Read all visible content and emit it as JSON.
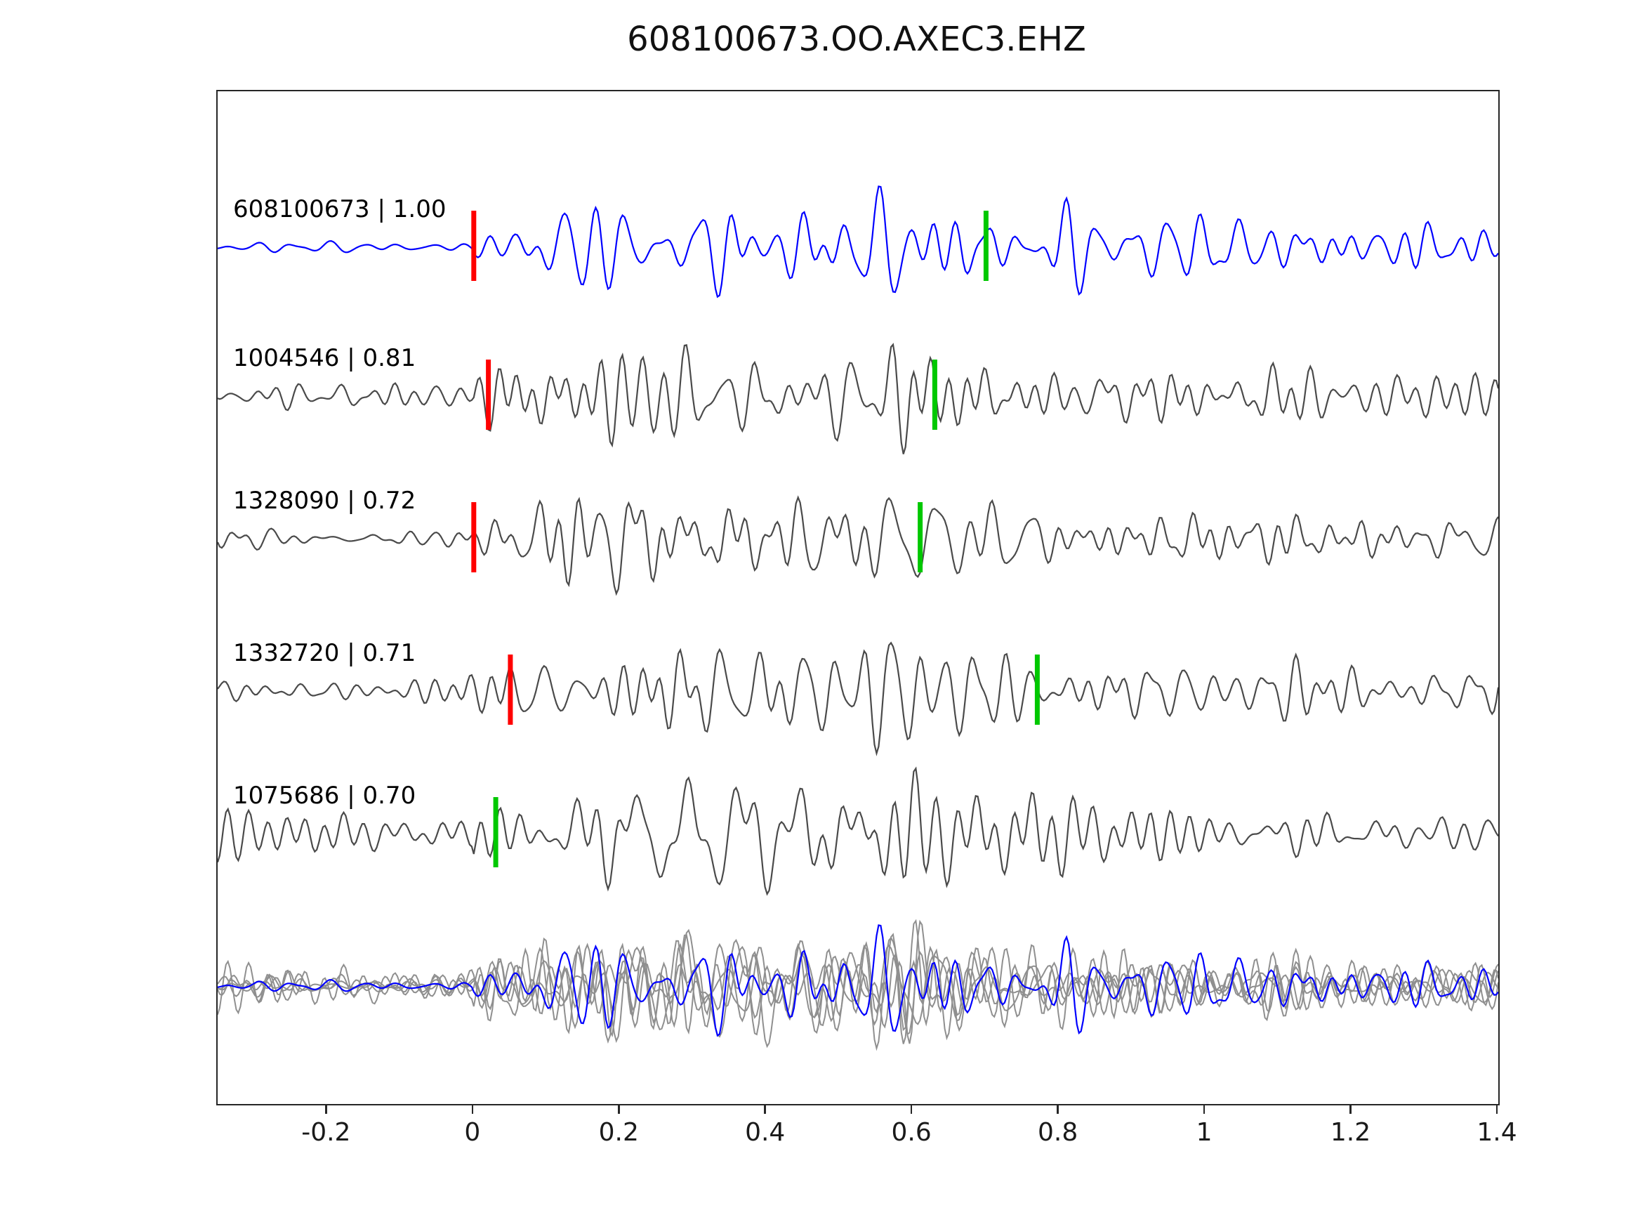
{
  "chart_data": {
    "type": "line",
    "subtype": "seismic-waveform-stack",
    "title": "608100673.OO.AXEC3.EHZ",
    "xlabel": "",
    "ylabel": "",
    "xlim": [
      -0.35,
      1.4
    ],
    "x_ticks": [
      -0.2,
      0,
      0.2,
      0.4,
      0.6,
      0.8,
      1,
      1.2,
      1.4
    ],
    "x_tick_labels": [
      "-0.2",
      "0",
      "0.2",
      "0.4",
      "0.6",
      "0.8",
      "1",
      "1.2",
      "1.4"
    ],
    "grid": false,
    "legend": "none",
    "colors": {
      "template": "#0000ff",
      "match": "#4a4a4a",
      "overlay_gray": "#8f8f8f",
      "pick_red": "#ff0000",
      "pick_green": "#00c800",
      "axis": "#262626"
    },
    "traces": [
      {
        "id": "608100673",
        "correlation": 1.0,
        "label": "608100673 | 1.00",
        "color_key": "template",
        "red_pick_x": 0.0,
        "green_pick_x": 0.7,
        "seed": 11,
        "pre_amp": 0.18
      },
      {
        "id": "1004546",
        "correlation": 0.81,
        "label": "1004546 | 0.81",
        "color_key": "match",
        "red_pick_x": 0.02,
        "green_pick_x": 0.63,
        "seed": 23,
        "pre_amp": 0.33
      },
      {
        "id": "1328090",
        "correlation": 0.72,
        "label": "1328090 | 0.72",
        "color_key": "match",
        "red_pick_x": 0.0,
        "green_pick_x": 0.61,
        "seed": 37,
        "pre_amp": 0.33
      },
      {
        "id": "1332720",
        "correlation": 0.71,
        "label": "1332720 | 0.71",
        "color_key": "match",
        "red_pick_x": 0.05,
        "green_pick_x": 0.77,
        "seed": 41,
        "pre_amp": 0.38
      },
      {
        "id": "1075686",
        "correlation": 0.7,
        "label": "1075686 | 0.70",
        "color_key": "match",
        "red_pick_x": null,
        "green_pick_x": 0.03,
        "seed": 53,
        "pre_amp": 0.6
      }
    ],
    "overlay": {
      "description": "all matched detections (gray) overlaid with template trace (blue)",
      "gray_series": [
        {
          "seed": 23,
          "pre_amp": 0.33
        },
        {
          "seed": 37,
          "pre_amp": 0.33
        },
        {
          "seed": 41,
          "pre_amp": 0.38
        },
        {
          "seed": 53,
          "pre_amp": 0.6
        },
        {
          "seed": 61,
          "pre_amp": 0.5
        }
      ],
      "blue": {
        "seed": 11,
        "pre_amp": 0.18
      }
    }
  }
}
